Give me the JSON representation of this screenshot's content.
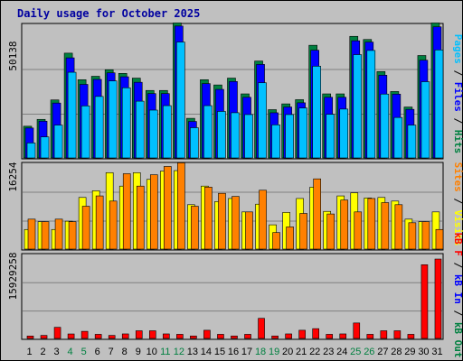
{
  "header": {
    "title": "Daily usage for October 2025"
  },
  "colors": {
    "background": "#c0c0c0",
    "plot_area": "#c0c0c0",
    "gridline": "#808080",
    "hits": "#008040",
    "files": "#0000ff",
    "pages": "#00c0ff",
    "sites": "#ff8000",
    "visits": "#ffff00",
    "kb_in": "#0000ff",
    "kb_out": "#008040",
    "kb_f": "#ff0000",
    "weekday_label": "#000000",
    "weekend_label": "#008040"
  },
  "chart_data": [
    {
      "type": "bar",
      "panel": "hits-files-pages",
      "max_label": "50138",
      "ylim": [
        0,
        50138
      ],
      "right_label": {
        "pages": "Pages",
        "sep1": " / ",
        "files": "Files",
        "sep2": " / ",
        "hits": "Hits"
      },
      "categories": [
        "1",
        "2",
        "3",
        "4",
        "5",
        "6",
        "7",
        "8",
        "9",
        "10",
        "11",
        "12",
        "13",
        "14",
        "15",
        "16",
        "17",
        "18",
        "19",
        "20",
        "21",
        "22",
        "23",
        "24",
        "25",
        "26",
        "27",
        "28",
        "29",
        "30",
        "31"
      ],
      "weekend_days": [
        "4",
        "5",
        "11",
        "12",
        "18",
        "19",
        "25",
        "26"
      ],
      "series": [
        {
          "name": "Hits",
          "values": [
            10700,
            13300,
            20700,
            38500,
            28400,
            29700,
            32200,
            30800,
            29000,
            24300,
            24300,
            50000,
            13700,
            28400,
            26400,
            29000,
            23000,
            35500,
            17000,
            19200,
            20800,
            41500,
            23000,
            23000,
            44900,
            43700,
            31500,
            23900,
            18000,
            37600,
            50000
          ]
        },
        {
          "name": "Files",
          "values": [
            10700,
            13300,
            20200,
            37400,
            27300,
            29200,
            31700,
            30200,
            28100,
            23800,
            23800,
            49500,
            13200,
            27600,
            25400,
            28400,
            22400,
            34900,
            16500,
            18700,
            20300,
            40300,
            22400,
            22400,
            43900,
            43400,
            30800,
            23600,
            17800,
            36500,
            49200
          ]
        },
        {
          "name": "Pages",
          "values": [
            5700,
            8000,
            12500,
            32600,
            19800,
            23400,
            29300,
            26700,
            21600,
            18200,
            19900,
            44100,
            11500,
            19900,
            17700,
            17200,
            16500,
            28600,
            12600,
            16500,
            19000,
            34900,
            16600,
            18600,
            39300,
            40900,
            24300,
            15400,
            12500,
            29000,
            41100
          ]
        }
      ]
    },
    {
      "type": "bar",
      "panel": "sites-visits",
      "max_label": "16254",
      "ylim": [
        0,
        16254
      ],
      "right_label": {
        "sites": "Sites",
        "sep": " / ",
        "visits": "Visits"
      },
      "categories": [
        "1",
        "2",
        "3",
        "4",
        "5",
        "6",
        "7",
        "8",
        "9",
        "10",
        "11",
        "12",
        "13",
        "14",
        "15",
        "16",
        "17",
        "18",
        "19",
        "20",
        "21",
        "22",
        "23",
        "24",
        "25",
        "26",
        "27",
        "28",
        "29",
        "30",
        "31"
      ],
      "series": [
        {
          "name": "Visits",
          "values": [
            3800,
            5300,
            3800,
            5400,
            10000,
            11300,
            14800,
            12200,
            14800,
            13500,
            15100,
            15200,
            8600,
            12200,
            9200,
            9800,
            7200,
            8700,
            4700,
            7100,
            9800,
            12000,
            7300,
            10300,
            10900,
            9900,
            10000,
            9300,
            5800,
            5300,
            7200
          ]
        },
        {
          "name": "Sites",
          "values": [
            5800,
            5300,
            5800,
            5300,
            8300,
            10300,
            9300,
            14600,
            12200,
            14400,
            16000,
            16700,
            8300,
            12000,
            10800,
            10200,
            7200,
            11400,
            3200,
            4300,
            6900,
            13600,
            6800,
            9500,
            7200,
            9800,
            9000,
            8600,
            5100,
            5300,
            3800
          ]
        }
      ]
    },
    {
      "type": "bar",
      "panel": "kbytes",
      "max_label": "15929258",
      "ylim": [
        0,
        15929258
      ],
      "right_label": {
        "f": "kB F",
        "sep1": " / ",
        "in": "kB In",
        "sep2": " / ",
        "out": "kB Out"
      },
      "categories": [
        "1",
        "2",
        "3",
        "4",
        "5",
        "6",
        "7",
        "8",
        "9",
        "10",
        "11",
        "12",
        "13",
        "14",
        "15",
        "16",
        "17",
        "18",
        "19",
        "20",
        "21",
        "22",
        "23",
        "24",
        "25",
        "26",
        "27",
        "28",
        "29",
        "30",
        "31"
      ],
      "series": [
        {
          "name": "kB F",
          "values": [
            470000,
            590000,
            2160000,
            870000,
            1380000,
            800000,
            590000,
            880000,
            1490000,
            1490000,
            880000,
            800000,
            480000,
            1590000,
            800000,
            480000,
            800000,
            3900000,
            480000,
            880000,
            1590000,
            1900000,
            800000,
            880000,
            3000000,
            800000,
            1490000,
            1490000,
            800000,
            14300000,
            15400000
          ]
        }
      ]
    }
  ]
}
